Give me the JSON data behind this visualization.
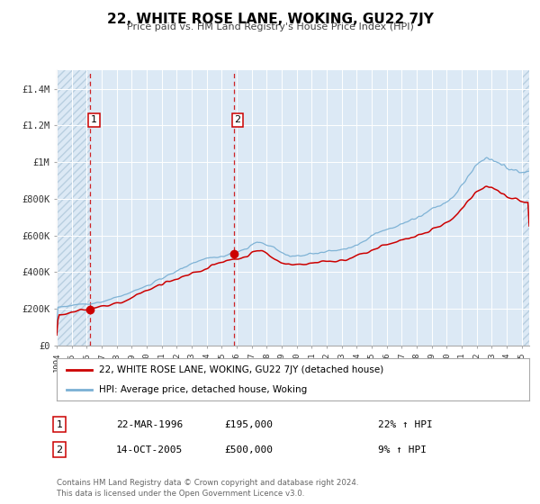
{
  "title": "22, WHITE ROSE LANE, WOKING, GU22 7JY",
  "subtitle": "Price paid vs. HM Land Registry's House Price Index (HPI)",
  "xlim": [
    1994.0,
    2025.5
  ],
  "ylim": [
    0,
    1500000
  ],
  "yticks": [
    0,
    200000,
    400000,
    600000,
    800000,
    1000000,
    1200000,
    1400000
  ],
  "ytick_labels": [
    "£0",
    "£200K",
    "£400K",
    "£600K",
    "£800K",
    "£1M",
    "£1.2M",
    "£1.4M"
  ],
  "xticks": [
    1994,
    1995,
    1996,
    1997,
    1998,
    1999,
    2000,
    2001,
    2002,
    2003,
    2004,
    2005,
    2006,
    2007,
    2008,
    2009,
    2010,
    2011,
    2012,
    2013,
    2014,
    2015,
    2016,
    2017,
    2018,
    2019,
    2020,
    2021,
    2022,
    2023,
    2024,
    2025
  ],
  "sale1_date": 1996.23,
  "sale1_price": 195000,
  "sale1_label": "1",
  "sale2_date": 2005.79,
  "sale2_price": 500000,
  "sale2_label": "2",
  "hpi_color": "#7ab0d4",
  "price_color": "#cc0000",
  "dot_color": "#cc0000",
  "vline_color": "#cc0000",
  "plot_bg_color": "#dce9f5",
  "hatch_edgecolor": "#b8cfe0",
  "legend_label_price": "22, WHITE ROSE LANE, WOKING, GU22 7JY (detached house)",
  "legend_label_hpi": "HPI: Average price, detached house, Woking",
  "annotation1_label": "1",
  "annotation1_date": "22-MAR-1996",
  "annotation1_price": "£195,000",
  "annotation1_hpi": "22% ↑ HPI",
  "annotation2_label": "2",
  "annotation2_date": "14-OCT-2005",
  "annotation2_price": "£500,000",
  "annotation2_hpi": "9% ↑ HPI",
  "footer1": "Contains HM Land Registry data © Crown copyright and database right 2024.",
  "footer2": "This data is licensed under the Open Government Licence v3.0."
}
